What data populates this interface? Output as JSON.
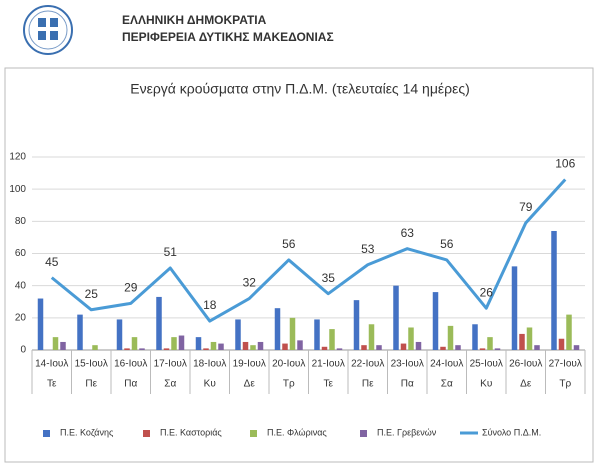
{
  "header": {
    "line1": "ΕΛΛΗΝΙΚΗ ΔΗΜΟΚΡΑΤΙΑ",
    "line2": "ΠΕΡΙΦΕΡΕΙΑ ΔΥΤΙΚΗΣ ΜΑΚΕΔΟΝΙΑΣ"
  },
  "chart_data": {
    "type": "bar",
    "title": "Ενεργά κρούσματα στην Π.Δ.Μ. (τελευταίες 14 ημέρες)",
    "categories": [
      "14-Ιουλ",
      "15-Ιουλ",
      "16-Ιουλ",
      "17-Ιουλ",
      "18-Ιουλ",
      "19-Ιουλ",
      "20-Ιουλ",
      "21-Ιουλ",
      "22-Ιουλ",
      "23-Ιουλ",
      "24-Ιουλ",
      "25-Ιουλ",
      "26-Ιουλ",
      "27-Ιουλ"
    ],
    "weekdays": [
      "Τε",
      "Πε",
      "Πα",
      "Σα",
      "Κυ",
      "Δε",
      "Τρ",
      "Τε",
      "Πε",
      "Πα",
      "Σα",
      "Κυ",
      "Δε",
      "Τρ"
    ],
    "series": [
      {
        "name": "Π.Ε. Κοζάνης",
        "color": "#4472c4",
        "values": [
          32,
          22,
          19,
          33,
          8,
          19,
          26,
          19,
          31,
          40,
          36,
          16,
          52,
          74
        ]
      },
      {
        "name": "Π.Ε. Καστοριάς",
        "color": "#c0504d",
        "values": [
          0,
          0,
          1,
          1,
          1,
          5,
          4,
          2,
          3,
          4,
          2,
          1,
          10,
          7
        ]
      },
      {
        "name": "Π.Ε. Φλώρινας",
        "color": "#9bbb59",
        "values": [
          8,
          3,
          8,
          8,
          5,
          3,
          20,
          13,
          16,
          14,
          15,
          8,
          14,
          22
        ]
      },
      {
        "name": "Π.Ε. Γρεβενών",
        "color": "#8064a2",
        "values": [
          5,
          0,
          1,
          9,
          4,
          5,
          6,
          1,
          3,
          5,
          3,
          1,
          3,
          3
        ]
      },
      {
        "name": "Σύνολο Π.Δ.Μ.",
        "color": "#4a9bd6",
        "type": "line",
        "values": [
          45,
          25,
          29,
          51,
          18,
          32,
          56,
          35,
          53,
          63,
          56,
          26,
          79,
          106
        ]
      }
    ],
    "ylim": [
      0,
      120
    ],
    "yticks": [
      0,
      20,
      40,
      60,
      80,
      100,
      120
    ],
    "grid": true
  }
}
